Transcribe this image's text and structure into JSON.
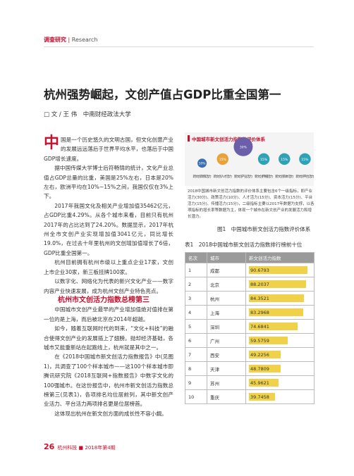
{
  "header": {
    "section": "调查研究",
    "section_en": "Research"
  },
  "article": {
    "title": "杭州强势崛起，文创产值占GDP比重全国第一",
    "author": "□ 文 / 王 伟　中南财经政法大学",
    "drop_cap": "中",
    "paragraphs": [
      "国是一个历史悠久的文明古国，但文化创意产业的发展远远落后于世界平均水平，也落后于中国GDP增长速度。",
      "据中国传媒大学博士后符畅锦的统计，文化产业总值占GDP总量的比重，美国是25%左右，日本是20%左右，欧洲平均在10%~15%之间，我国仅仅在3%上下。",
      "2017年我国文化及相关产业增加值35462亿元，占GDP比重4.29%。从各个城市来看，目前只有杭州2017年的占比达到了24.20%。数据显示，2017年杭州全市文创产业实现增加值3041亿元，同比增长19.0%，在过去十年里杭州的文创增加值增长了6倍，GDP比重全国第一。",
      "杭州目前拥有杭州市级以上重点企业17家，文创上市企业30家，新三板挂牌100家。",
      "以数字化、网络化为代表的新兴文化产业——数字内容产业快速发展，成为杭州文创产业特色亮点。"
    ],
    "section_heading": "杭州市文创活力指数总榜第三",
    "paragraphs_2": [
      "中国城市文创产业最早的产业增加值绝对值排在第一位的是上海，而后被北京在2014年超越。",
      "如今，随着互联网时代的到来，“文化+科技”的融合使得文创产业的发展插上了翅膀。抛却经济基础，各城市又能重新站在起跑线上，杭州就是其中之一。",
      "在《2018中国城市新文创活力指数报告》中(见图1)，共调查了100个样本城市——这100个样本城市即腾讯研究院《2018互联网+指数报告》中数字文化的100强城市。在这份报告中，杭州市新文创活力指数总榜第三(见表1)，各项排名均位居前列，其中新文创产业活力、平台活力两项排名更是位居榜首。",
      "这体现出杭州在新文创方面的成长性不容小觑。"
    ]
  },
  "figure": {
    "title": "中国城市新文创活力指数的评价体系",
    "nodes": [
      {
        "label": "新文创政策活力",
        "value": 10,
        "value_label": "10%"
      },
      {
        "label": "新文创人才活力",
        "value": 15,
        "value_label": "15%"
      },
      {
        "label": "新文创产业活力",
        "value": 30,
        "value_label": "30%"
      },
      {
        "label": "新文创传播活力",
        "value": 15,
        "value_label": "15%"
      },
      {
        "label": "新文创资本活力",
        "value": 15,
        "value_label": "15%"
      },
      {
        "label": "新文创平台活力",
        "value": 15,
        "value_label": "15%"
      }
    ],
    "note": "2018中国城市新文创活力指数的评价体系主要包含6个一级指标，即产业活力(30分)、政策活力(10分)、人才活力(15分)、资本活力(15分)、平台活力(15分)、传播活力(15分)，二级指标主要以2017年数据为支撑，以各项指标的增长率等数据为主，体现一个城市在新文创产业的发展活力和增长潜力。",
    "caption": "图1　中国城市新文创活力指数评价体系"
  },
  "table": {
    "caption": "表1　2018中国城市新文创活力指数排行榜前十位",
    "header": [
      "名次",
      "城市",
      "新文创活力指数"
    ],
    "rows": [
      [
        1,
        "成都",
        90.6793
      ],
      [
        2,
        "北京",
        88.2037
      ],
      [
        3,
        "杭州",
        84.3521
      ],
      [
        4,
        "上海",
        83.2968
      ],
      [
        5,
        "深圳",
        74.6841
      ],
      [
        6,
        "广州",
        59.5759
      ],
      [
        7,
        "西安",
        49.2256
      ],
      [
        8,
        "天津",
        48.7809
      ],
      [
        9,
        "苏州",
        45.9621
      ],
      [
        10,
        "重庆",
        39.7458
      ]
    ]
  },
  "footer": {
    "page": "26",
    "journal": "杭州科技 ■ 2018年第4期"
  }
}
